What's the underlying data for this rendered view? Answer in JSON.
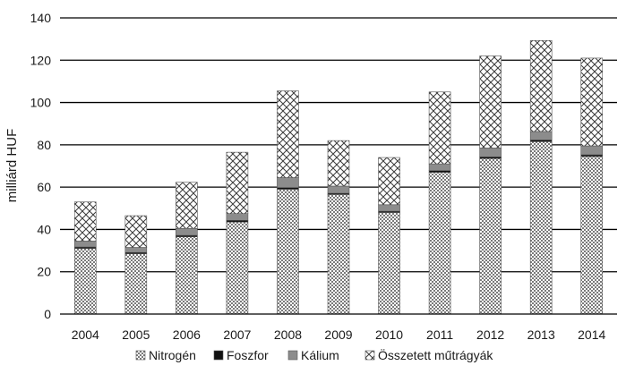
{
  "chart_data": {
    "type": "bar",
    "stacked": true,
    "title": "",
    "xlabel": "",
    "ylabel": "milliárd HUF",
    "ylim": [
      0,
      140
    ],
    "yticks": [
      0,
      20,
      40,
      60,
      80,
      100,
      120,
      140
    ],
    "grid": "horizontal",
    "legend_position": "bottom",
    "categories": [
      "2004",
      "2005",
      "2006",
      "2007",
      "2008",
      "2009",
      "2010",
      "2011",
      "2012",
      "2013",
      "2014"
    ],
    "series": [
      {
        "name": "Nitrogén",
        "pattern": "dense-checker",
        "color": "#9a9a9a",
        "values": [
          31,
          28.5,
          36.5,
          43.5,
          59,
          56.5,
          48,
          67,
          73.5,
          81.5,
          74.5
        ]
      },
      {
        "name": "Foszfor",
        "pattern": "solid",
        "color": "#111111",
        "values": [
          0.7,
          0.6,
          0.7,
          0.8,
          0.8,
          0.6,
          0.6,
          0.8,
          0.8,
          0.8,
          0.8
        ]
      },
      {
        "name": "Kálium",
        "pattern": "solid",
        "color": "#8c8c8c",
        "values": [
          2.8,
          2.4,
          3.3,
          3.2,
          4.7,
          3.4,
          3.1,
          3.2,
          4.2,
          4.0,
          4.2
        ]
      },
      {
        "name": "Összetett műtrágyák",
        "pattern": "diagonal-cross",
        "color": "#ffffff",
        "values": [
          18.5,
          15.0,
          21.8,
          29.0,
          41.0,
          21.5,
          22.3,
          34.0,
          43.5,
          43.0,
          41.5
        ]
      }
    ]
  }
}
